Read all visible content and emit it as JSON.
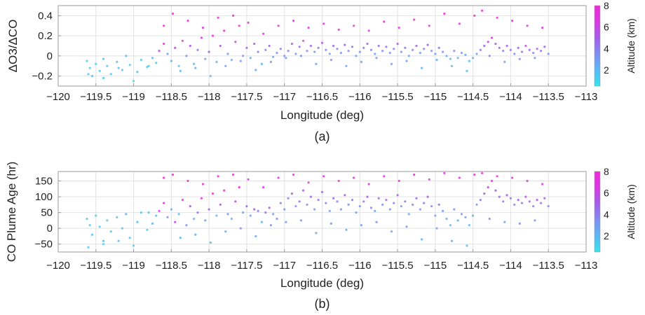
{
  "colors": {
    "colormap": [
      "#33e3ee",
      "#5ab8f5",
      "#7f8ef2",
      "#a45ce8",
      "#d73ae0",
      "#f028d8"
    ],
    "grid": "#e2e2e2",
    "axis": "#999999",
    "background": "#ffffff"
  },
  "chart_data": [
    {
      "type": "scatter",
      "panel_label": "(a)",
      "title": "",
      "xlabel": "Longitude (deg)",
      "ylabel": "ΔO3/ΔCO",
      "xlim": [
        -120,
        -113
      ],
      "ylim": [
        -0.3,
        0.5
      ],
      "grid": true,
      "x_ticks": [
        "−120",
        "−119.5",
        "−119",
        "−118.5",
        "−118",
        "−117.5",
        "−117",
        "−116.5",
        "−116",
        "−115.5",
        "−115",
        "−114.5",
        "−114",
        "−113.5",
        "−113"
      ],
      "x_tick_values": [
        -120,
        -119.5,
        -119,
        -118.5,
        -118,
        -117.5,
        -117,
        -116.5,
        -116,
        -115.5,
        -115,
        -114.5,
        -114,
        -113.5,
        -113
      ],
      "y_ticks": [
        "−0.2",
        "0",
        "0.2",
        "0.4"
      ],
      "y_tick_values": [
        -0.2,
        0,
        0.2,
        0.4
      ],
      "colorbar": {
        "label": "Altitude (km)",
        "range": [
          0.5,
          8
        ],
        "ticks": [
          "2",
          "4",
          "6",
          "8"
        ],
        "tick_values": [
          2,
          4,
          6,
          8
        ]
      },
      "points_x": [
        -119.62,
        -119.58,
        -119.55,
        -119.5,
        -119.45,
        -119.4,
        -119.35,
        -119.3,
        -119.22,
        -119.15,
        -119.1,
        -119.05,
        -118.95,
        -118.9,
        -118.82,
        -118.75,
        -118.7,
        -118.66,
        -118.6,
        -118.55,
        -118.5,
        -118.45,
        -118.4,
        -118.35,
        -118.3,
        -118.25,
        -118.2,
        -118.15,
        -118.1,
        -118.05,
        -118.0,
        -117.95,
        -117.9,
        -117.85,
        -117.8,
        -117.75,
        -117.7,
        -117.65,
        -117.6,
        -117.55,
        -117.5,
        -117.45,
        -117.4,
        -117.35,
        -117.3,
        -117.25,
        -117.2,
        -117.15,
        -117.1,
        -117.05,
        -117.0,
        -116.95,
        -116.9,
        -116.85,
        -116.8,
        -116.75,
        -116.7,
        -116.65,
        -116.6,
        -116.55,
        -116.5,
        -116.45,
        -116.4,
        -116.35,
        -116.3,
        -116.25,
        -116.2,
        -116.15,
        -116.1,
        -116.05,
        -116.0,
        -115.95,
        -115.9,
        -115.85,
        -115.8,
        -115.75,
        -115.7,
        -115.65,
        -115.6,
        -115.55,
        -115.5,
        -115.45,
        -115.4,
        -115.35,
        -115.3,
        -115.25,
        -115.2,
        -115.15,
        -115.1,
        -115.05,
        -115.0,
        -114.95,
        -114.9,
        -114.85,
        -114.8,
        -114.75,
        -114.7,
        -114.65,
        -114.6,
        -114.55,
        -114.5,
        -114.45,
        -114.4,
        -114.35,
        -114.3,
        -114.25,
        -114.2,
        -114.15,
        -114.1,
        -114.05,
        -114.0,
        -113.95,
        -113.9,
        -113.85,
        -113.8,
        -113.75,
        -113.7,
        -113.65,
        -113.6,
        -113.55,
        -113.5,
        -119.6,
        -119.4,
        -119.2,
        -119.0,
        -118.8,
        -118.6,
        -118.48,
        -118.38,
        -118.28,
        -118.18,
        -118.08,
        -117.98,
        -117.88,
        -117.78,
        -117.68,
        -117.58,
        -117.48,
        -117.38,
        -117.28,
        -117.18,
        -117.08,
        -116.98,
        -116.88,
        -116.78,
        -116.68,
        -116.58,
        -116.48,
        -116.38,
        -116.28,
        -116.18,
        -116.08,
        -115.98,
        -115.88,
        -115.78,
        -115.68,
        -115.58,
        -115.48,
        -115.38,
        -115.28,
        -115.18,
        -115.08,
        -114.98,
        -114.88,
        -114.78,
        -114.68,
        -114.58,
        -114.48,
        -114.38,
        -114.28,
        -114.18,
        -114.08,
        -113.98,
        -113.88,
        -113.78,
        -113.68,
        -113.58
      ],
      "points_y": [
        -0.05,
        -0.12,
        -0.2,
        -0.08,
        -0.15,
        -0.03,
        -0.1,
        -0.18,
        -0.06,
        -0.14,
        0.0,
        -0.09,
        -0.16,
        -0.04,
        -0.11,
        -0.02,
        -0.07,
        0.05,
        0.12,
        0.02,
        -0.05,
        0.08,
        -0.1,
        0.15,
        0.0,
        0.1,
        -0.08,
        0.06,
        0.18,
        -0.03,
        0.04,
        0.2,
        -0.06,
        0.1,
        0.25,
        0.02,
        -0.04,
        0.14,
        0.3,
        0.0,
        0.08,
        -0.02,
        0.12,
        0.04,
        -0.08,
        0.06,
        0.1,
        -0.01,
        0.03,
        0.07,
        0.0,
        0.05,
        0.12,
        0.02,
        0.09,
        0.15,
        0.05,
        0.1,
        0.04,
        0.08,
        0.13,
        0.06,
        0.02,
        0.1,
        0.07,
        0.03,
        0.11,
        0.05,
        0.09,
        0.0,
        0.04,
        0.08,
        0.12,
        0.06,
        0.02,
        0.1,
        0.05,
        0.09,
        0.03,
        0.07,
        0.12,
        0.04,
        0.08,
        0.0,
        0.06,
        0.1,
        0.03,
        0.07,
        0.11,
        0.05,
        0.02,
        0.08,
        0.04,
        0.0,
        -0.03,
        0.05,
        -0.02,
        0.03,
        0.01,
        -0.05,
        -0.02,
        0.02,
        0.06,
        0.1,
        0.14,
        0.18,
        0.12,
        0.08,
        0.05,
        0.1,
        0.06,
        0.02,
        0.08,
        0.04,
        0.1,
        0.06,
        0.03,
        0.07,
        0.05,
        0.09,
        0.02,
        -0.18,
        -0.22,
        -0.12,
        -0.25,
        -0.1,
        0.3,
        0.42,
        -0.15,
        0.35,
        -0.12,
        0.28,
        -0.2,
        0.38,
        -0.1,
        0.4,
        -0.05,
        0.33,
        -0.14,
        0.22,
        -0.06,
        0.3,
        -0.02,
        0.35,
        0.0,
        0.28,
        -0.08,
        0.32,
        -0.04,
        0.26,
        -0.1,
        0.3,
        -0.06,
        0.25,
        -0.02,
        0.34,
        -0.08,
        0.28,
        -0.05,
        0.36,
        -0.12,
        0.3,
        -0.04,
        0.42,
        -0.1,
        0.32,
        -0.15,
        0.4,
        0.45,
        0.0,
        0.38,
        -0.06,
        0.35,
        -0.03,
        0.3,
        -0.02,
        0.28
      ],
      "points_altitude_km": [
        1.5,
        1.2,
        1.8,
        1.4,
        1.1,
        2.0,
        1.6,
        1.3,
        1.7,
        1.5,
        2.2,
        1.4,
        1.9,
        1.6,
        1.3,
        2.1,
        1.8,
        6.5,
        7.5,
        3.0,
        2.2,
        6.0,
        1.8,
        7.2,
        3.5,
        5.5,
        2.0,
        4.5,
        7.0,
        2.5,
        5.0,
        7.8,
        2.1,
        5.8,
        7.6,
        3.2,
        2.4,
        6.2,
        7.9,
        3.0,
        4.8,
        2.6,
        5.5,
        3.8,
        2.2,
        4.5,
        5.0,
        3.0,
        3.6,
        4.2,
        3.3,
        4.0,
        5.2,
        3.1,
        4.4,
        5.6,
        3.5,
        4.8,
        3.2,
        4.3,
        5.4,
        3.8,
        2.8,
        4.6,
        4.0,
        3.0,
        5.0,
        3.6,
        4.4,
        2.6,
        3.4,
        4.2,
        5.2,
        3.8,
        2.9,
        4.6,
        3.6,
        4.5,
        3.1,
        4.0,
        5.0,
        3.3,
        4.2,
        2.7,
        3.8,
        4.8,
        3.2,
        4.1,
        5.1,
        3.6,
        2.8,
        4.4,
        3.4,
        2.5,
        2.0,
        3.6,
        2.2,
        3.0,
        2.6,
        1.8,
        2.1,
        3.0,
        4.2,
        5.0,
        6.0,
        6.8,
        5.6,
        4.8,
        4.0,
        5.2,
        4.5,
        3.6,
        5.0,
        4.2,
        5.4,
        4.6,
        3.8,
        5.0,
        4.4,
        5.2,
        3.6,
        1.4,
        1.2,
        1.6,
        1.3,
        1.5,
        7.8,
        8.0,
        2.2,
        7.6,
        2.5,
        7.0,
        1.9,
        7.4,
        2.8,
        7.9,
        3.2,
        7.2,
        2.4,
        6.8,
        3.4,
        7.0,
        3.0,
        7.5,
        3.6,
        6.6,
        2.8,
        7.2,
        3.2,
        6.4,
        2.6,
        7.0,
        3.0,
        6.5,
        3.4,
        7.3,
        2.8,
        6.8,
        3.0,
        7.6,
        2.2,
        7.0,
        2.6,
        7.8,
        2.4,
        7.2,
        2.0,
        7.6,
        7.9,
        3.6,
        7.4,
        3.0,
        7.2,
        3.4,
        6.8,
        3.2,
        6.6
      ]
    },
    {
      "type": "scatter",
      "panel_label": "(b)",
      "title": "",
      "xlabel": "Longitude (deg)",
      "ylabel": "CO Plume Age (hr)",
      "xlim": [
        -120,
        -113
      ],
      "ylim": [
        -75,
        180
      ],
      "grid": true,
      "x_ticks": [
        "−120",
        "−119.5",
        "−119",
        "−118.5",
        "−118",
        "−117.5",
        "−117",
        "−116.5",
        "−116",
        "−115.5",
        "−115",
        "−114.5",
        "−114",
        "−113.5",
        "−113"
      ],
      "x_tick_values": [
        -120,
        -119.5,
        -119,
        -118.5,
        -118,
        -117.5,
        -117,
        -116.5,
        -116,
        -115.5,
        -115,
        -114.5,
        -114,
        -113.5,
        -113
      ],
      "y_ticks": [
        "−50",
        "0",
        "50",
        "100",
        "150"
      ],
      "y_tick_values": [
        -50,
        0,
        50,
        100,
        150
      ],
      "colorbar": {
        "label": "Altitude (km)",
        "range": [
          0.5,
          8
        ],
        "ticks": [
          "2",
          "4",
          "6",
          "8"
        ],
        "tick_values": [
          2,
          4,
          6,
          8
        ]
      },
      "points_x": [
        -119.62,
        -119.58,
        -119.55,
        -119.5,
        -119.45,
        -119.4,
        -119.35,
        -119.3,
        -119.22,
        -119.15,
        -119.1,
        -119.05,
        -118.95,
        -118.9,
        -118.82,
        -118.75,
        -118.7,
        -118.66,
        -118.6,
        -118.55,
        -118.5,
        -118.45,
        -118.4,
        -118.35,
        -118.3,
        -118.25,
        -118.2,
        -118.15,
        -118.1,
        -118.05,
        -118.0,
        -117.95,
        -117.9,
        -117.85,
        -117.8,
        -117.75,
        -117.7,
        -117.65,
        -117.6,
        -117.55,
        -117.5,
        -117.45,
        -117.4,
        -117.35,
        -117.3,
        -117.25,
        -117.2,
        -117.15,
        -117.1,
        -117.05,
        -117.0,
        -116.95,
        -116.9,
        -116.85,
        -116.8,
        -116.75,
        -116.7,
        -116.65,
        -116.6,
        -116.55,
        -116.5,
        -116.45,
        -116.4,
        -116.35,
        -116.3,
        -116.25,
        -116.2,
        -116.15,
        -116.1,
        -116.05,
        -116.0,
        -115.95,
        -115.9,
        -115.85,
        -115.8,
        -115.75,
        -115.7,
        -115.65,
        -115.6,
        -115.55,
        -115.5,
        -115.45,
        -115.4,
        -115.35,
        -115.3,
        -115.25,
        -115.2,
        -115.15,
        -115.1,
        -115.05,
        -115.0,
        -114.95,
        -114.9,
        -114.85,
        -114.8,
        -114.75,
        -114.7,
        -114.65,
        -114.6,
        -114.55,
        -114.5,
        -114.45,
        -114.4,
        -114.35,
        -114.3,
        -114.25,
        -114.2,
        -114.15,
        -114.1,
        -114.05,
        -114.0,
        -113.95,
        -113.9,
        -113.85,
        -113.8,
        -113.75,
        -113.7,
        -113.65,
        -113.6,
        -113.55,
        -113.5,
        -119.6,
        -119.4,
        -119.2,
        -119.0,
        -118.8,
        -118.6,
        -118.48,
        -118.38,
        -118.28,
        -118.18,
        -118.08,
        -117.98,
        -117.88,
        -117.78,
        -117.68,
        -117.58,
        -117.48,
        -117.38,
        -117.28,
        -117.18,
        -117.08,
        -116.98,
        -116.88,
        -116.78,
        -116.68,
        -116.58,
        -116.48,
        -116.38,
        -116.28,
        -116.18,
        -116.08,
        -115.98,
        -115.88,
        -115.78,
        -115.68,
        -115.58,
        -115.48,
        -115.38,
        -115.28,
        -115.18,
        -115.08,
        -114.98,
        -114.88,
        -114.78,
        -114.68,
        -114.58,
        -114.48,
        -114.38,
        -114.28,
        -114.18,
        -114.08,
        -113.98,
        -113.88,
        -113.78,
        -113.68,
        -113.58
      ],
      "points_y": [
        30,
        10,
        -20,
        40,
        5,
        -40,
        25,
        -10,
        35,
        0,
        45,
        -30,
        20,
        50,
        -5,
        15,
        40,
        55,
        80,
        35,
        60,
        20,
        45,
        90,
        10,
        70,
        30,
        50,
        95,
        25,
        60,
        110,
        40,
        75,
        120,
        45,
        30,
        85,
        130,
        50,
        70,
        40,
        60,
        55,
        20,
        50,
        65,
        45,
        30,
        80,
        60,
        95,
        110,
        70,
        85,
        120,
        75,
        100,
        60,
        90,
        115,
        80,
        55,
        95,
        85,
        60,
        105,
        75,
        90,
        50,
        70,
        85,
        100,
        65,
        55,
        95,
        75,
        90,
        60,
        80,
        105,
        70,
        85,
        45,
        75,
        95,
        60,
        80,
        100,
        70,
        40,
        75,
        55,
        30,
        10,
        60,
        25,
        45,
        35,
        10,
        40,
        75,
        90,
        110,
        130,
        150,
        120,
        100,
        85,
        105,
        95,
        75,
        90,
        80,
        100,
        85,
        70,
        90,
        80,
        95,
        70,
        -60,
        -50,
        -40,
        -55,
        50,
        160,
        170,
        -30,
        150,
        -20,
        140,
        -45,
        165,
        -10,
        170,
        0,
        155,
        -25,
        130,
        10,
        160,
        20,
        170,
        25,
        145,
        -15,
        165,
        15,
        150,
        -5,
        160,
        10,
        140,
        20,
        165,
        -10,
        150,
        5,
        170,
        -35,
        155,
        0,
        175,
        -40,
        160,
        -55,
        170,
        175,
        30,
        165,
        20,
        160,
        15,
        150,
        25,
        140
      ],
      "points_altitude_km": [
        1.5,
        1.2,
        1.8,
        1.4,
        1.1,
        2.0,
        1.6,
        1.3,
        1.7,
        1.5,
        2.2,
        1.4,
        1.9,
        1.6,
        1.3,
        2.1,
        1.8,
        6.5,
        7.5,
        3.0,
        2.2,
        6.0,
        1.8,
        7.2,
        3.5,
        5.5,
        2.0,
        4.5,
        7.0,
        2.5,
        5.0,
        7.8,
        2.1,
        5.8,
        7.6,
        3.2,
        2.4,
        6.2,
        7.9,
        3.0,
        4.8,
        2.6,
        5.5,
        3.8,
        2.2,
        4.5,
        5.0,
        3.0,
        3.6,
        4.2,
        3.3,
        4.0,
        5.2,
        3.1,
        4.4,
        5.6,
        3.5,
        4.8,
        3.2,
        4.3,
        5.4,
        3.8,
        2.8,
        4.6,
        4.0,
        3.0,
        5.0,
        3.6,
        4.4,
        2.6,
        3.4,
        4.2,
        5.2,
        3.8,
        2.9,
        4.6,
        3.6,
        4.5,
        3.1,
        4.0,
        5.0,
        3.3,
        4.2,
        2.7,
        3.8,
        4.8,
        3.2,
        4.1,
        5.1,
        3.6,
        2.8,
        4.4,
        3.4,
        2.5,
        2.0,
        3.6,
        2.2,
        3.0,
        2.6,
        1.8,
        2.1,
        3.0,
        4.2,
        5.0,
        6.0,
        6.8,
        5.6,
        4.8,
        4.0,
        5.2,
        4.5,
        3.6,
        5.0,
        4.2,
        5.4,
        4.6,
        3.8,
        5.0,
        4.4,
        5.2,
        3.6,
        1.4,
        1.2,
        1.6,
        1.3,
        1.5,
        7.8,
        8.0,
        2.2,
        7.6,
        2.5,
        7.0,
        1.9,
        7.4,
        2.8,
        7.9,
        3.2,
        7.2,
        2.4,
        6.8,
        3.4,
        7.0,
        3.0,
        7.5,
        3.6,
        6.6,
        2.8,
        7.2,
        3.2,
        6.4,
        2.6,
        7.0,
        3.0,
        6.5,
        3.4,
        7.3,
        2.8,
        6.8,
        3.0,
        7.6,
        2.2,
        7.0,
        2.6,
        7.8,
        2.4,
        7.2,
        2.0,
        7.6,
        7.9,
        3.6,
        7.4,
        3.0,
        7.2,
        3.4,
        6.8,
        3.2,
        6.6
      ]
    }
  ]
}
